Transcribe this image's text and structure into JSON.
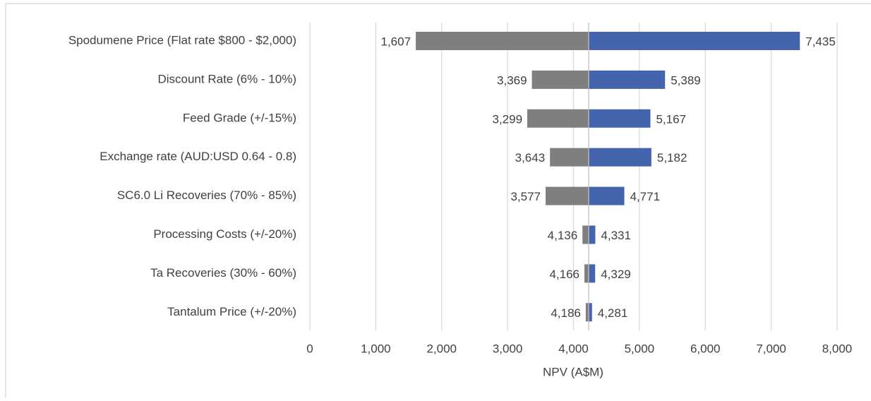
{
  "chart_data": {
    "type": "tornado",
    "x_label": "NPV (A$M)",
    "categories": [
      "Spodumene Price (Flat rate $800 - $2,000)",
      "Discount Rate (6% - 10%)",
      "Feed Grade (+/-15%)",
      "Exchange rate (AUD:USD 0.64 - 0.8)",
      "SC6.0 Li Recoveries (70% - 85%)",
      "Processing Costs (+/-20%)",
      "Ta Recoveries (30% - 60%)",
      "Tantalum Price (+/-20%)"
    ],
    "base": 4230,
    "low": {
      "color": "#7f7f7f",
      "values": [
        1607,
        3369,
        3299,
        3643,
        3577,
        4136,
        4166,
        4186
      ],
      "value_labels": [
        "1,607",
        "3,369",
        "3,299",
        "3,643",
        "3,577",
        "4,136",
        "4,166",
        "4,186"
      ]
    },
    "high": {
      "color": "#4464ae",
      "values": [
        7435,
        5389,
        5167,
        5182,
        4771,
        4331,
        4329,
        4281
      ],
      "value_labels": [
        "7,435",
        "5,389",
        "5,167",
        "5,182",
        "4,771",
        "4,331",
        "4,329",
        "4,281"
      ]
    },
    "xlim": [
      0,
      8000
    ],
    "xticks": [
      0,
      {
        "value": 1000,
        "label": "1,000"
      },
      {
        "value": 2000,
        "label": "2,000"
      },
      {
        "value": 3000,
        "label": "3,000"
      },
      {
        "value": 4000,
        "label": "4,000"
      },
      {
        "value": 5000,
        "label": "5,000"
      },
      {
        "value": 6000,
        "label": "6,000"
      },
      {
        "value": 7000,
        "label": "7,000"
      },
      {
        "value": 8000,
        "label": "8,000"
      }
    ],
    "grid": true
  }
}
